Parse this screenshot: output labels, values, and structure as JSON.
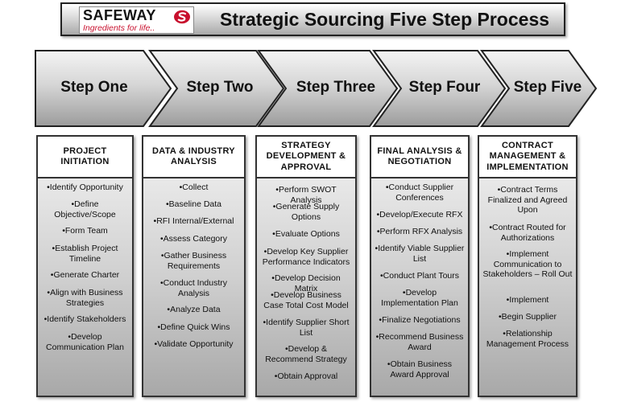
{
  "header": {
    "logo_word": "SAFEWAY",
    "logo_tagline": "Ingredients for life..",
    "title": "Strategic Sourcing Five Step Process"
  },
  "colors": {
    "brand_red": "#c8102e"
  },
  "icons": {
    "logo_mark": "safeway-s-logo-icon"
  },
  "steps": [
    {
      "label": "Step One",
      "heading": "PROJECT INITIATION",
      "items": [
        "•Identify Opportunity",
        "•Define Objective/Scope",
        "•Form Team",
        "•Establish Project Timeline",
        "•Generate Charter",
        "•Align with Business Strategies",
        "•Identify Stakeholders",
        "•Develop Communication Plan"
      ]
    },
    {
      "label": "Step Two",
      "heading": "DATA & INDUSTRY ANALYSIS",
      "items": [
        "•Collect",
        "•Baseline Data",
        "•RFI Internal/External",
        "•Assess Category",
        "•Gather Business Requirements",
        "•Conduct Industry Analysis",
        "•Analyze Data",
        "•Define Quick Wins",
        "•Validate Opportunity"
      ]
    },
    {
      "label": "Step Three",
      "heading": "STRATEGY DEVELOPMENT & APPROVAL",
      "items": [
        "•Perform SWOT Analysis",
        "•Generate Supply Options",
        "•Evaluate Options",
        "•Develop Key Supplier Performance Indicators",
        "•Develop Decision Matrix",
        "•Develop Business Case Total Cost Model",
        "•Identify Supplier Short List",
        "•Develop & Recommend Strategy",
        "•Obtain Approval"
      ]
    },
    {
      "label": "Step Four",
      "heading": "FINAL ANALYSIS & NEGOTIATION",
      "items": [
        "•Conduct Supplier Conferences",
        "•Develop/Execute RFX",
        "•Perform RFX Analysis",
        "•Identify Viable Supplier List",
        "•Conduct Plant Tours",
        "•Develop Implementation Plan",
        "•Finalize Negotiations",
        "•Recommend Business Award",
        "•Obtain Business Award Approval"
      ]
    },
    {
      "label": "Step Five",
      "heading": "CONTRACT MANAGEMENT & IMPLEMENTATION",
      "items": [
        "•Contract Terms Finalized and Agreed Upon",
        "•Contract Routed for Authorizations",
        "•Implement Communication to Stakeholders – Roll Out",
        "•Implement",
        "•Begin Supplier",
        "•Relationship Management Process"
      ]
    }
  ]
}
